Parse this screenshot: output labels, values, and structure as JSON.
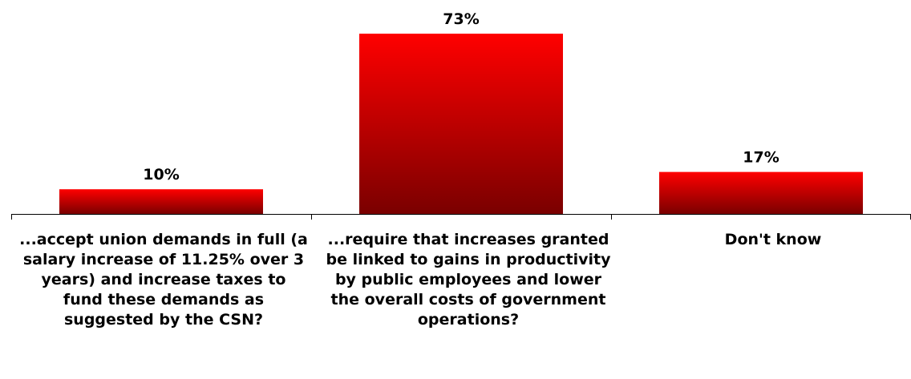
{
  "chart_data": {
    "type": "bar",
    "categories": [
      "...accept union demands in full (a salary increase of 11.25% over 3 years) and increase taxes to fund these demands as suggested by the CSN?",
      "...require that increases granted be linked to gains in productivity by public employees and lower the overall costs of government operations?",
      "Don't know"
    ],
    "values": [
      10,
      73,
      17
    ],
    "data_labels": [
      "10%",
      "73%",
      "17%"
    ],
    "ylim": [
      0,
      73
    ],
    "grid": false,
    "legend": "none",
    "colors": {
      "bar_top": "#ff0000",
      "bar_bottom": "#7a0000",
      "axis": "#000000"
    }
  }
}
